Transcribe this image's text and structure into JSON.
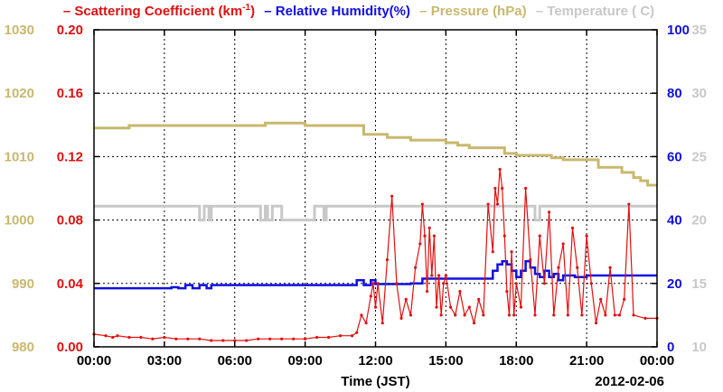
{
  "chart_data": {
    "type": "line",
    "xlabel": "Time (JST)",
    "date_label": "2012-02-06",
    "x_ticks": [
      "00:00",
      "03:00",
      "06:00",
      "09:00",
      "12:00",
      "15:00",
      "18:00",
      "21:00",
      "00:00"
    ],
    "x_range_hours": [
      0,
      24
    ],
    "grid": true,
    "legend_position": "top",
    "axes": {
      "pressure": {
        "ticks": [
          "980",
          "990",
          "1000",
          "1010",
          "1020",
          "1030"
        ],
        "range": [
          980,
          1030
        ],
        "color": "#c8b86e"
      },
      "scattering": {
        "ticks": [
          "0.00",
          "0.04",
          "0.08",
          "0.12",
          "0.16",
          "0.20"
        ],
        "range": [
          0,
          0.2
        ],
        "color": "#e01010"
      },
      "humidity": {
        "ticks": [
          "0",
          "20",
          "40",
          "60",
          "80",
          "100"
        ],
        "range": [
          0,
          100
        ],
        "color": "#1010e0"
      },
      "temperature": {
        "ticks": [
          "10",
          "15",
          "20",
          "25",
          "30",
          "35"
        ],
        "range": [
          10,
          35
        ],
        "color": "#c8c8c8"
      }
    },
    "series": [
      {
        "name": "Scattering Coefficient (km",
        "name_sup": "-1",
        "name_suffix": ")",
        "axis": "scattering",
        "color": "#e01010",
        "x": [
          0,
          0.5,
          0.8,
          1.0,
          1.5,
          2.0,
          2.5,
          3.0,
          3.5,
          4.0,
          4.5,
          5.0,
          5.5,
          6.0,
          6.5,
          7.0,
          7.5,
          8.0,
          8.5,
          9.0,
          9.5,
          10.0,
          10.5,
          11.0,
          11.2,
          11.4,
          11.6,
          11.8,
          11.9,
          12.0,
          12.1,
          12.3,
          12.5,
          12.7,
          12.9,
          13.1,
          13.3,
          13.5,
          13.7,
          13.9,
          14.0,
          14.1,
          14.2,
          14.3,
          14.4,
          14.5,
          14.6,
          14.7,
          14.8,
          14.9,
          15.0,
          15.2,
          15.4,
          15.6,
          15.8,
          16.0,
          16.2,
          16.4,
          16.6,
          16.8,
          17.0,
          17.1,
          17.2,
          17.3,
          17.4,
          17.5,
          17.6,
          17.7,
          17.8,
          17.9,
          18.0,
          18.2,
          18.4,
          18.6,
          18.8,
          19.0,
          19.2,
          19.4,
          19.6,
          19.8,
          20.0,
          20.2,
          20.4,
          20.6,
          20.8,
          21.0,
          21.2,
          21.4,
          21.6,
          21.8,
          22.0,
          22.2,
          22.4,
          22.6,
          22.8,
          23.0,
          23.5,
          24.0
        ],
        "values": [
          0.008,
          0.007,
          0.006,
          0.007,
          0.006,
          0.006,
          0.005,
          0.006,
          0.005,
          0.005,
          0.005,
          0.004,
          0.004,
          0.004,
          0.004,
          0.005,
          0.005,
          0.005,
          0.005,
          0.005,
          0.006,
          0.006,
          0.007,
          0.007,
          0.009,
          0.02,
          0.015,
          0.032,
          0.04,
          0.025,
          0.04,
          0.015,
          0.055,
          0.095,
          0.04,
          0.018,
          0.03,
          0.02,
          0.05,
          0.065,
          0.09,
          0.07,
          0.035,
          0.075,
          0.045,
          0.07,
          0.025,
          0.045,
          0.02,
          0.04,
          0.045,
          0.025,
          0.02,
          0.035,
          0.02,
          0.025,
          0.015,
          0.03,
          0.02,
          0.09,
          0.06,
          0.1,
          0.09,
          0.112,
          0.1,
          0.07,
          0.035,
          0.02,
          0.06,
          0.02,
          0.04,
          0.025,
          0.1,
          0.055,
          0.02,
          0.07,
          0.04,
          0.085,
          0.02,
          0.05,
          0.065,
          0.02,
          0.075,
          0.05,
          0.02,
          0.07,
          0.04,
          0.015,
          0.03,
          0.02,
          0.05,
          0.02,
          0.02,
          0.03,
          0.09,
          0.02,
          0.018,
          0.018
        ]
      },
      {
        "name": "Relative Humidity(%)",
        "axis": "humidity",
        "color": "#1010e0",
        "x": [
          0,
          3.0,
          3.3,
          3.6,
          3.9,
          4.2,
          4.5,
          4.8,
          5.0,
          11.0,
          11.2,
          11.5,
          11.8,
          12.0,
          13.5,
          14.0,
          14.5,
          15.0,
          16.0,
          16.8,
          17.0,
          17.2,
          17.4,
          17.6,
          17.8,
          18.0,
          18.2,
          18.4,
          18.6,
          18.8,
          19.0,
          19.2,
          19.4,
          19.6,
          19.8,
          20.0,
          20.5,
          21.0,
          22.0,
          23.0,
          24.0
        ],
        "values": [
          18.5,
          18.5,
          18.8,
          18.5,
          19.5,
          18.5,
          19.5,
          18.5,
          19.5,
          19.5,
          21.0,
          19.5,
          21.0,
          19.8,
          20.0,
          21.5,
          21.5,
          21.5,
          21.5,
          21.5,
          24.0,
          26.0,
          27.0,
          26.0,
          24.0,
          22.0,
          24.0,
          27.0,
          25.0,
          23.0,
          22.0,
          24.0,
          22.0,
          23.0,
          21.0,
          22.5,
          22.0,
          22.5,
          22.5,
          22.5,
          22.5
        ]
      },
      {
        "name": "Pressure (hPa)",
        "axis": "pressure",
        "color": "#c8b86e",
        "x": [
          0,
          1.3,
          1.5,
          7.0,
          7.3,
          8.0,
          9.0,
          11.0,
          11.5,
          12.0,
          12.5,
          13.0,
          13.5,
          14.0,
          15.0,
          15.5,
          16.0,
          17.0,
          17.5,
          18.0,
          19.0,
          19.5,
          20.0,
          21.0,
          21.5,
          22.0,
          22.5,
          23.0,
          23.3,
          23.6,
          24.0
        ],
        "values": [
          1014.5,
          1014.5,
          1014.9,
          1014.9,
          1015.3,
          1015.3,
          1014.9,
          1014.9,
          1013.5,
          1013.5,
          1013.0,
          1013.0,
          1012.6,
          1012.6,
          1012.2,
          1011.8,
          1011.4,
          1011.4,
          1010.5,
          1010.2,
          1010.2,
          1009.8,
          1009.5,
          1009.5,
          1008.3,
          1008.3,
          1007.5,
          1006.7,
          1006.2,
          1005.5,
          1005.5
        ]
      },
      {
        "name": "Temperature (  C)",
        "axis": "temperature",
        "color": "#c8c8c8",
        "x": [
          0,
          4.4,
          4.5,
          4.7,
          4.9,
          5.0,
          5.1,
          7.0,
          7.1,
          7.3,
          7.4,
          7.6,
          8.0,
          9.3,
          9.4,
          9.8,
          9.9,
          18.5,
          18.8,
          19.0,
          24.0
        ],
        "values": [
          21.1,
          21.1,
          20.0,
          21.1,
          20.0,
          21.1,
          21.1,
          21.1,
          20.0,
          21.1,
          20.0,
          21.1,
          20.0,
          20.0,
          21.1,
          20.0,
          21.1,
          21.1,
          20.0,
          21.1,
          21.1
        ]
      }
    ]
  }
}
